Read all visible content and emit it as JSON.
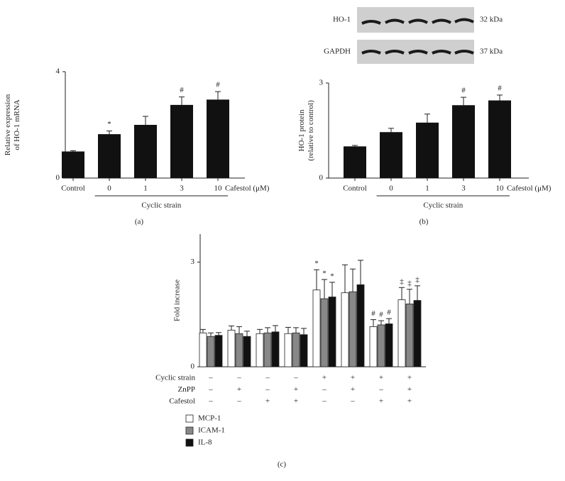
{
  "chart_data": [
    {
      "type": "bar",
      "caption": "(a)",
      "ylabel": [
        "Relative expression",
        "of HO-1 mRNA"
      ],
      "categories": [
        "Control",
        "0",
        "1",
        "3",
        "10"
      ],
      "values": [
        1.0,
        1.65,
        2.0,
        2.75,
        2.95
      ],
      "errors": [
        0.03,
        0.12,
        0.32,
        0.3,
        0.3
      ],
      "annotations": [
        null,
        "*",
        null,
        "#",
        "#"
      ],
      "x_suffix": "Cafestol (μM)",
      "group_label": "Cyclic strain",
      "color": "#111111",
      "ylim": [
        0,
        4
      ],
      "yticks": [
        0,
        4
      ]
    },
    {
      "type": "bar",
      "caption": "(b)",
      "ylabel": [
        "HO-1 protein",
        "(relative to control)"
      ],
      "categories": [
        "Control",
        "0",
        "1",
        "3",
        "10"
      ],
      "values": [
        1.0,
        1.45,
        1.75,
        2.3,
        2.45
      ],
      "errors": [
        0.03,
        0.12,
        0.27,
        0.25,
        0.17
      ],
      "annotations": [
        null,
        null,
        null,
        "#",
        "#"
      ],
      "x_suffix": "Cafestol (μM)",
      "group_label": "Cyclic strain",
      "color": "#111111",
      "ylim": [
        0,
        3
      ],
      "yticks": [
        0,
        3
      ],
      "blot": [
        {
          "label": "HO-1",
          "size": "32 kDa"
        },
        {
          "label": "GAPDH",
          "size": "37 kDa"
        }
      ]
    },
    {
      "type": "grouped-bar",
      "caption": "(c)",
      "ylabel": [
        "Fold increase"
      ],
      "series": [
        {
          "name": "MCP-1",
          "color": "#ffffff",
          "values": [
            0.97,
            1.05,
            0.95,
            0.95,
            2.2,
            2.12,
            1.15,
            1.92
          ],
          "errors": [
            0.1,
            0.12,
            0.12,
            0.18,
            0.58,
            0.8,
            0.2,
            0.35
          ],
          "annotations": [
            null,
            null,
            null,
            null,
            "*",
            null,
            "#",
            "‡"
          ]
        },
        {
          "name": "ICAM-1",
          "color": "#888888",
          "values": [
            0.87,
            0.95,
            0.97,
            0.97,
            1.95,
            2.15,
            1.2,
            1.8
          ],
          "errors": [
            0.1,
            0.2,
            0.15,
            0.15,
            0.55,
            0.65,
            0.12,
            0.42
          ],
          "annotations": [
            null,
            null,
            null,
            null,
            "*",
            null,
            "#",
            "‡"
          ]
        },
        {
          "name": "IL-8",
          "color": "#111111",
          "values": [
            0.9,
            0.87,
            1.0,
            0.92,
            2.0,
            2.35,
            1.23,
            1.9
          ],
          "errors": [
            0.08,
            0.15,
            0.18,
            0.18,
            0.42,
            0.7,
            0.15,
            0.42
          ],
          "annotations": [
            null,
            null,
            null,
            null,
            "*",
            null,
            "#",
            "‡"
          ]
        }
      ],
      "conditions": [
        {
          "name": "Cyclic strain",
          "values": [
            "–",
            "–",
            "–",
            "–",
            "+",
            "+",
            "+",
            "+"
          ]
        },
        {
          "name": "ZnPP",
          "values": [
            "–",
            "+",
            "–",
            "+",
            "–",
            "+",
            "–",
            "+"
          ]
        },
        {
          "name": "Cafestol",
          "values": [
            "–",
            "–",
            "+",
            "+",
            "–",
            "–",
            "+",
            "+"
          ]
        }
      ],
      "ylim": [
        0,
        3.8
      ],
      "yticks": [
        0,
        3
      ]
    }
  ]
}
